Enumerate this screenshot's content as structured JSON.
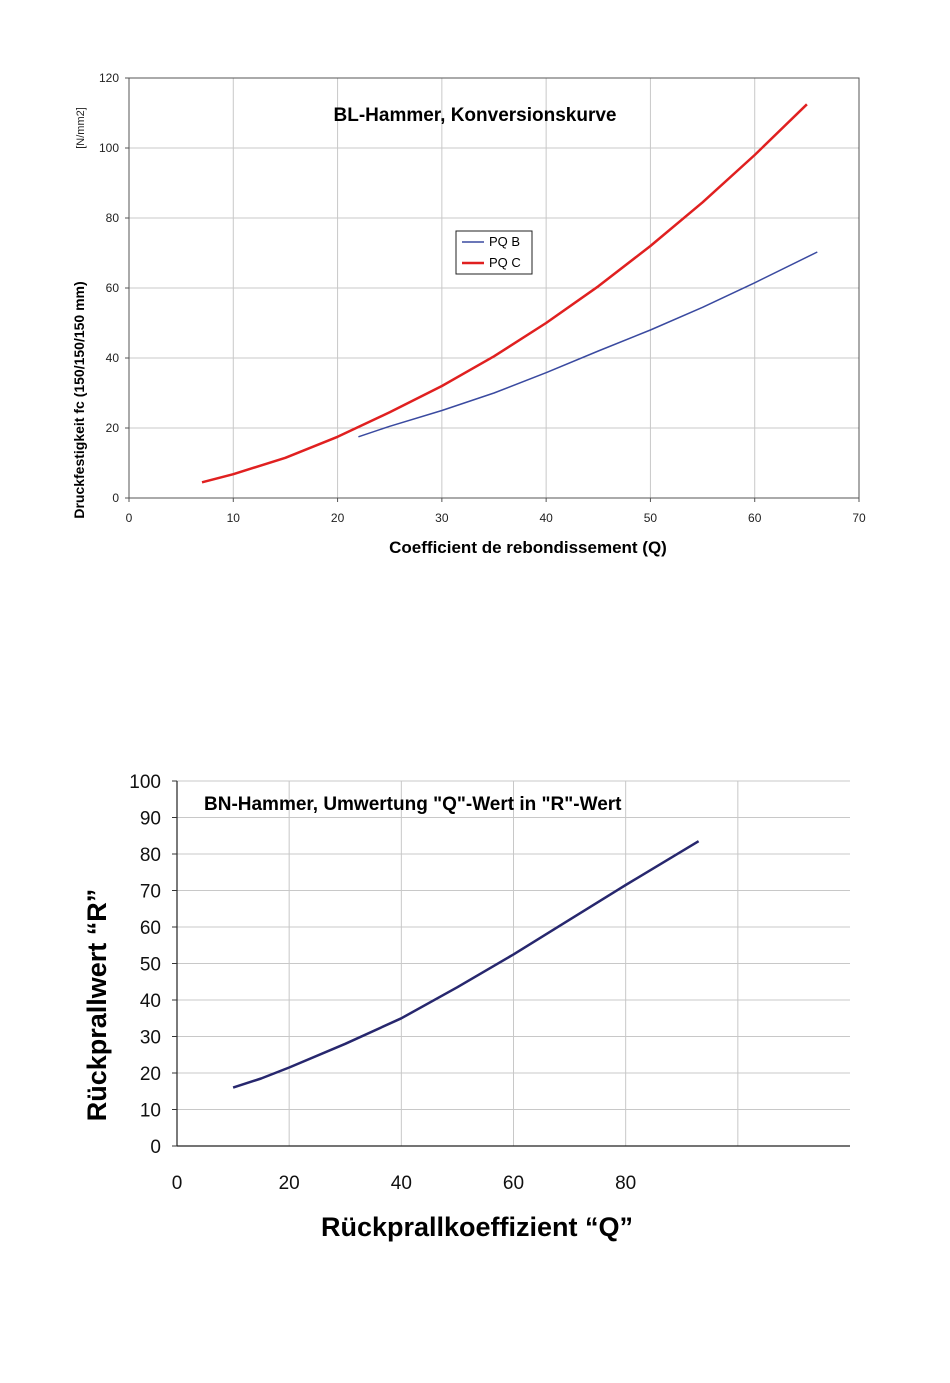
{
  "chart_data": [
    {
      "type": "line",
      "title": "BL-Hammer, Konversionskurve",
      "xlabel": "Coefficient de rebondissement (Q)",
      "ylabel": "Druckfestigkeit fc (150/150/150 mm)",
      "yunit": "[N/mm2]",
      "xlim": [
        0,
        70
      ],
      "ylim": [
        0,
        120
      ],
      "xticks": [
        "0",
        "10",
        "20",
        "30",
        "40",
        "50",
        "60",
        "70"
      ],
      "yticks": [
        "0",
        "20",
        "40",
        "60",
        "80",
        "100",
        "120"
      ],
      "grid": true,
      "legend": "center",
      "series": [
        {
          "name": "PQ B",
          "color": "#3a4aa0",
          "x": [
            22,
            25,
            30,
            35,
            40,
            45,
            50,
            55,
            60,
            66
          ],
          "y": [
            17.5,
            20.5,
            25.0,
            30.0,
            35.8,
            42.0,
            48.0,
            54.5,
            61.5,
            70.3
          ]
        },
        {
          "name": "PQ C",
          "color": "#e02020",
          "x": [
            7,
            10,
            15,
            20,
            25,
            30,
            35,
            40,
            45,
            50,
            55,
            60,
            65
          ],
          "y": [
            4.5,
            6.8,
            11.5,
            17.5,
            24.5,
            32.0,
            40.5,
            50.0,
            60.5,
            72.0,
            84.5,
            98.0,
            112.5
          ]
        }
      ]
    },
    {
      "type": "line",
      "title": "BN-Hammer, Umwertung  \"Q\"-Wert in \"R\"-Wert",
      "xlabel": "Rückprallkoeffizient “Q”",
      "ylabel": "Rückprallwert “R”",
      "xlim": [
        0,
        120
      ],
      "ylim": [
        0,
        100
      ],
      "xticks": [
        "0",
        "20",
        "40",
        "60",
        "80"
      ],
      "yticks": [
        "0",
        "10",
        "20",
        "30",
        "40",
        "50",
        "60",
        "70",
        "80",
        "90",
        "100"
      ],
      "grid": true,
      "series": [
        {
          "color": "#27276e",
          "x": [
            10,
            15,
            20,
            30,
            40,
            50,
            60,
            70,
            80,
            93
          ],
          "y": [
            16,
            18.5,
            21.5,
            28,
            35,
            43.5,
            52.5,
            62,
            71.5,
            83.5
          ]
        }
      ]
    }
  ]
}
